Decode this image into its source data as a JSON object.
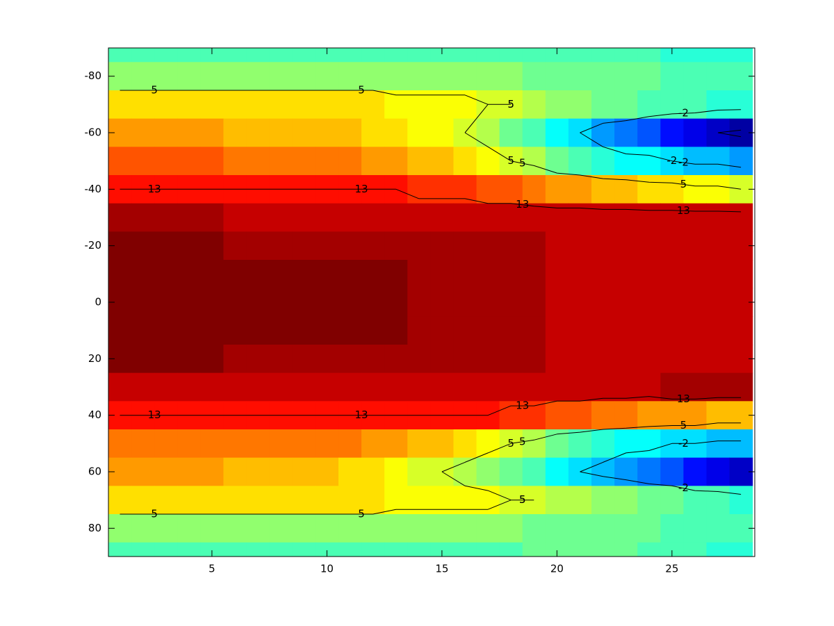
{
  "chart_data": {
    "type": "heatmap",
    "colormap": "jet",
    "clim": [
      -12,
      17
    ],
    "xlim": [
      0.5,
      28.6
    ],
    "ylim": [
      -90,
      90
    ],
    "ydir": "reverse",
    "xticks": [
      5,
      10,
      15,
      20,
      25
    ],
    "yticks": [
      -80,
      -60,
      -40,
      -20,
      0,
      20,
      40,
      60,
      80
    ],
    "contour_levels": [
      -10,
      -2,
      5,
      13
    ],
    "contour_color": "#000000",
    "x": [
      1,
      2,
      3,
      4,
      5,
      6,
      7,
      8,
      9,
      10,
      11,
      12,
      13,
      14,
      15,
      16,
      17,
      18,
      19,
      20,
      21,
      22,
      23,
      24,
      25,
      26,
      27,
      28
    ],
    "y": [
      -90,
      -80,
      -70,
      -60,
      -50,
      -40,
      -30,
      -20,
      -10,
      0,
      10,
      20,
      30,
      40,
      50,
      60,
      70,
      80,
      90
    ],
    "z": [
      [
        1,
        1,
        1,
        1,
        1,
        1,
        1,
        1,
        1,
        1,
        1,
        1,
        1,
        1,
        1,
        1,
        1,
        1,
        1,
        1,
        1,
        1,
        1,
        1,
        0,
        0,
        0,
        0
      ],
      [
        3,
        3,
        3,
        3,
        3,
        3,
        3,
        3,
        3,
        3,
        3,
        3,
        3,
        3,
        3,
        3,
        3,
        3,
        2,
        2,
        2,
        2,
        2,
        2,
        1,
        1,
        1,
        1
      ],
      [
        7,
        7,
        7,
        7,
        7,
        7,
        7,
        7,
        7,
        7,
        7,
        7,
        6,
        6,
        6,
        6,
        5,
        5,
        4,
        3,
        3,
        2,
        2,
        1,
        1,
        1,
        0,
        0
      ],
      [
        9,
        9,
        9,
        9,
        9,
        8,
        8,
        8,
        8,
        8,
        8,
        7,
        7,
        6,
        6,
        5,
        4,
        2,
        1,
        -1,
        -2,
        -4,
        -5,
        -6,
        -8,
        -9,
        -10,
        -11
      ],
      [
        11,
        11,
        11,
        11,
        11,
        10,
        10,
        10,
        10,
        10,
        10,
        9,
        9,
        8,
        8,
        7,
        6,
        5,
        4,
        2,
        1,
        0,
        -1,
        -1,
        -2,
        -3,
        -3,
        -4
      ],
      [
        13,
        13,
        13,
        13,
        13,
        13,
        13,
        13,
        13,
        13,
        13,
        13,
        13,
        12,
        12,
        12,
        11,
        11,
        10,
        9,
        9,
        8,
        8,
        7,
        7,
        6,
        6,
        5
      ],
      [
        16,
        16,
        16,
        16,
        16,
        15,
        15,
        15,
        15,
        15,
        15,
        15,
        15,
        15,
        15,
        15,
        15,
        15,
        15,
        15,
        15,
        15,
        15,
        15,
        15,
        15,
        15,
        15
      ],
      [
        17,
        17,
        17,
        17,
        17,
        16,
        16,
        16,
        16,
        16,
        16,
        16,
        16,
        16,
        16,
        16,
        16,
        16,
        16,
        15,
        15,
        15,
        15,
        15,
        15,
        15,
        15,
        15
      ],
      [
        17,
        17,
        17,
        17,
        17,
        17,
        17,
        17,
        17,
        17,
        17,
        17,
        17,
        16,
        16,
        16,
        16,
        16,
        16,
        15,
        15,
        15,
        15,
        15,
        15,
        15,
        15,
        15
      ],
      [
        17,
        17,
        17,
        17,
        17,
        17,
        17,
        17,
        17,
        17,
        17,
        17,
        17,
        16,
        16,
        16,
        16,
        16,
        16,
        15,
        15,
        15,
        15,
        15,
        15,
        15,
        15,
        15
      ],
      [
        17,
        17,
        17,
        17,
        17,
        17,
        17,
        17,
        17,
        17,
        17,
        17,
        17,
        16,
        16,
        16,
        16,
        16,
        16,
        15,
        15,
        15,
        15,
        15,
        15,
        15,
        15,
        15
      ],
      [
        17,
        17,
        17,
        17,
        17,
        16,
        16,
        16,
        16,
        16,
        16,
        16,
        16,
        16,
        16,
        16,
        16,
        16,
        16,
        15,
        15,
        15,
        15,
        15,
        15,
        15,
        15,
        15
      ],
      [
        15,
        15,
        15,
        15,
        15,
        15,
        15,
        15,
        15,
        15,
        15,
        15,
        15,
        15,
        15,
        15,
        15,
        15,
        15,
        15,
        15,
        15,
        15,
        15,
        16,
        16,
        16,
        16
      ],
      [
        13,
        13,
        13,
        13,
        13,
        13,
        13,
        13,
        13,
        13,
        13,
        13,
        13,
        13,
        13,
        13,
        13,
        12,
        12,
        11,
        11,
        10,
        10,
        9,
        9,
        9,
        8,
        8
      ],
      [
        10,
        10,
        10,
        10,
        10,
        10,
        10,
        10,
        10,
        10,
        10,
        9,
        9,
        8,
        8,
        7,
        6,
        5,
        4,
        2,
        1,
        0,
        -1,
        -1,
        -2,
        -2,
        -3,
        -3
      ],
      [
        9,
        9,
        9,
        9,
        9,
        8,
        8,
        8,
        8,
        8,
        7,
        7,
        6,
        5,
        5,
        4,
        3,
        2,
        1,
        -1,
        -2,
        -3,
        -4,
        -5,
        -6,
        -8,
        -9,
        -10
      ],
      [
        7,
        7,
        7,
        7,
        7,
        7,
        7,
        7,
        7,
        7,
        7,
        7,
        6,
        6,
        6,
        6,
        6,
        5,
        5,
        4,
        4,
        3,
        3,
        2,
        2,
        1,
        1,
        0
      ],
      [
        3,
        3,
        3,
        3,
        3,
        3,
        3,
        3,
        3,
        3,
        3,
        3,
        3,
        3,
        3,
        3,
        3,
        3,
        2,
        2,
        2,
        2,
        2,
        2,
        1,
        1,
        1,
        1
      ],
      [
        1,
        1,
        1,
        1,
        1,
        1,
        1,
        1,
        1,
        1,
        1,
        1,
        1,
        1,
        1,
        1,
        1,
        1,
        2,
        2,
        2,
        2,
        2,
        1,
        1,
        1,
        0,
        0
      ]
    ]
  }
}
